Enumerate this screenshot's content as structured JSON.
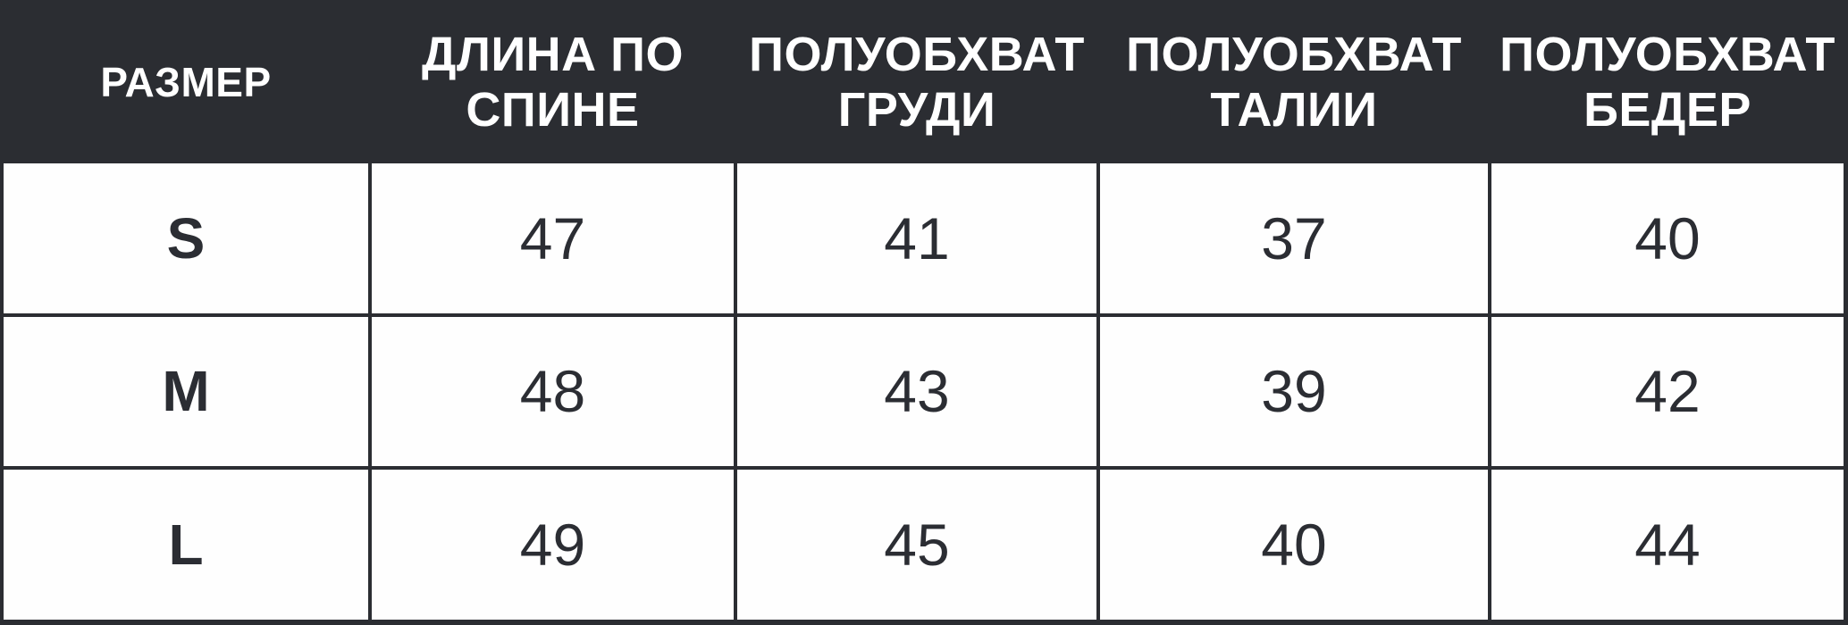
{
  "chart_data": {
    "type": "table",
    "title": "",
    "columns": [
      "РАЗМЕР",
      "ДЛИНА ПО СПИНЕ",
      "ПОЛУОБХВАТ ГРУДИ",
      "ПОЛУОБХВАТ ТАЛИИ",
      "ПОЛУОБХВАТ БЕДЕР"
    ],
    "rows": [
      [
        "S",
        "47",
        "41",
        "37",
        "40"
      ],
      [
        "M",
        "48",
        "43",
        "39",
        "42"
      ],
      [
        "L",
        "49",
        "45",
        "40",
        "44"
      ]
    ]
  },
  "colors": {
    "header_bg": "#2b2d32",
    "header_text": "#ffffff",
    "cell_bg": "#fefefe",
    "cell_text": "#2b2d33",
    "grid_line": "#2b2d32"
  }
}
